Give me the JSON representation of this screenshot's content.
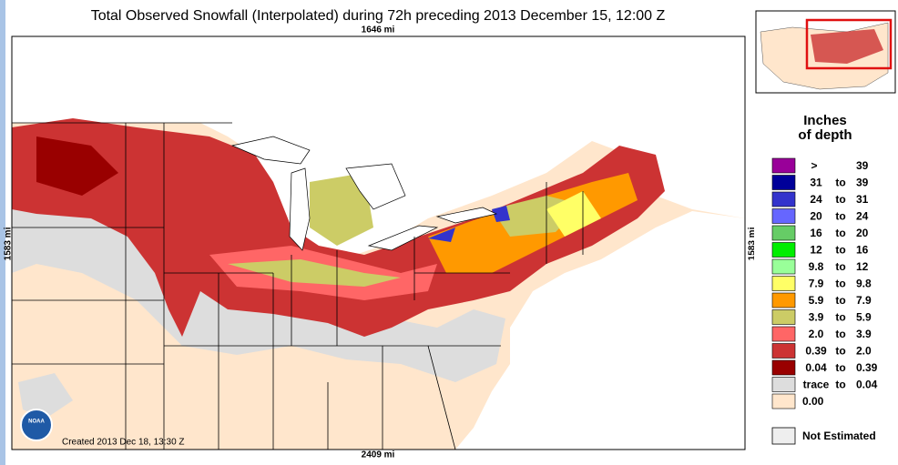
{
  "title": "Total Observed Snowfall (Interpolated) during 72h preceding 2013 December 15, 12:00 Z",
  "map": {
    "top_label": "1646 mi",
    "bottom_label": "2409 mi",
    "left_label": "1583 mi",
    "right_label": "1583 mi",
    "created": "Created 2013 Dec 18, 13:30 Z",
    "logo": "NOAA"
  },
  "legend": {
    "title_line1": "Inches",
    "title_line2": "of depth",
    "items": [
      {
        "color": "#990099",
        "text": [
          ">",
          "39"
        ]
      },
      {
        "color": "#000099",
        "text": [
          "31",
          "to",
          "39"
        ]
      },
      {
        "color": "#3333cc",
        "text": [
          "24",
          "to",
          "31"
        ]
      },
      {
        "color": "#6666ff",
        "text": [
          "20",
          "to",
          "24"
        ]
      },
      {
        "color": "#66cc66",
        "text": [
          "16",
          "to",
          "20"
        ]
      },
      {
        "color": "#00ee00",
        "text": [
          "12",
          "to",
          "16"
        ]
      },
      {
        "color": "#99ff99",
        "text": [
          "9.8",
          "to",
          "12"
        ]
      },
      {
        "color": "#ffff66",
        "text": [
          "7.9",
          "to",
          "9.8"
        ]
      },
      {
        "color": "#ff9900",
        "text": [
          "5.9",
          "to",
          "7.9"
        ]
      },
      {
        "color": "#cccc66",
        "text": [
          "3.9",
          "to",
          "5.9"
        ]
      },
      {
        "color": "#ff6666",
        "text": [
          "2.0",
          "to",
          "3.9"
        ]
      },
      {
        "color": "#cc3333",
        "text": [
          "0.39",
          "to",
          "2.0"
        ]
      },
      {
        "color": "#990000",
        "text": [
          "0.04",
          "to",
          "0.39"
        ]
      },
      {
        "color": "#dddddd",
        "text": [
          "trace",
          "to",
          "0.04"
        ]
      },
      {
        "color": "#ffe6cc",
        "text": [
          "0.00"
        ]
      }
    ],
    "not_estimated": {
      "color": "#eeeeee",
      "text": "Not Estimated"
    }
  }
}
